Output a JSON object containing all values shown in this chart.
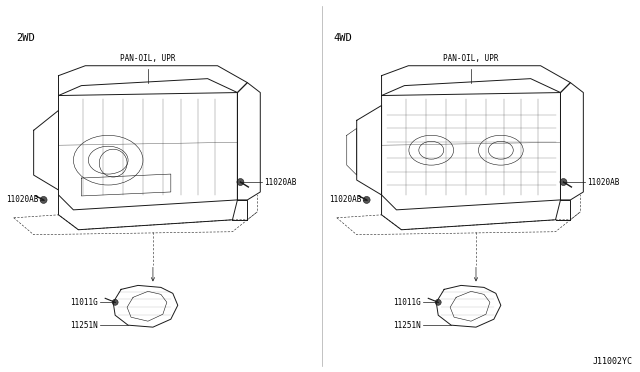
{
  "bg_color": "#ffffff",
  "line_color": "#1a1a1a",
  "fig_width": 6.4,
  "fig_height": 3.72,
  "dpi": 100,
  "title_2wd": "2WD",
  "title_4wd": "4WD",
  "diagram_code": "J11002YC",
  "label_pan_oil": "PAN-OIL, UPR",
  "label_11020ab": "11020AB",
  "label_11020ab2": "11020AB",
  "label_11011g": "11011G",
  "label_11251n": "11251N",
  "font_size_label": 5.5,
  "font_size_title": 7.5,
  "font_size_code": 6.0,
  "lw_main": 0.7,
  "lw_thin": 0.4,
  "lw_dashed": 0.4
}
